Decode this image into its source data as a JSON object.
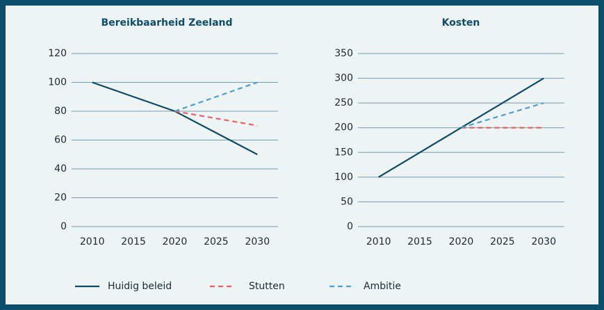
{
  "chart_data": [
    {
      "type": "line",
      "title": "Bereikbaarheid Zeeland",
      "x": [
        2010,
        2015,
        2020,
        2025,
        2030
      ],
      "xlim": [
        2007.5,
        2032.5
      ],
      "xticks": [
        2010,
        2015,
        2020,
        2025,
        2030
      ],
      "ylim": [
        0,
        120
      ],
      "yticks": [
        0,
        20,
        40,
        60,
        80,
        100,
        120
      ],
      "grid": true,
      "series": [
        {
          "name": "Huidig beleid",
          "color": "#0d4a66",
          "dash": false,
          "values": [
            100,
            90,
            80,
            65,
            50
          ]
        },
        {
          "name": "Stutten",
          "color": "#e8605f",
          "dash": true,
          "values": [
            null,
            null,
            80,
            75,
            70
          ]
        },
        {
          "name": "Ambitie",
          "color": "#4a9fd0",
          "dash": true,
          "values": [
            null,
            null,
            80,
            90,
            100
          ]
        }
      ]
    },
    {
      "type": "line",
      "title": "Kosten",
      "x": [
        2010,
        2015,
        2020,
        2025,
        2030
      ],
      "xlim": [
        2007.5,
        2032.5
      ],
      "xticks": [
        2010,
        2015,
        2020,
        2025,
        2030
      ],
      "ylim": [
        0,
        350
      ],
      "yticks": [
        0,
        50,
        100,
        150,
        200,
        250,
        300,
        350
      ],
      "grid": true,
      "series": [
        {
          "color": "#0d4a66",
          "dash": false,
          "values": [
            100,
            150,
            200,
            250,
            300
          ]
        },
        {
          "color": "#e8605f",
          "dash": true,
          "values": [
            null,
            null,
            200,
            200,
            200
          ]
        },
        {
          "color": "#4a9fd0",
          "dash": true,
          "values": [
            null,
            null,
            200,
            225,
            250
          ]
        }
      ]
    }
  ]
}
